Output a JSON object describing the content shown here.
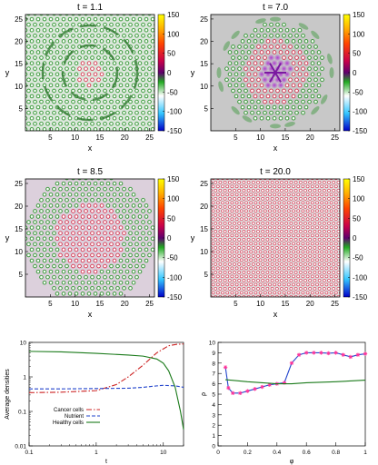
{
  "colorbar": {
    "ticks": [
      "150",
      "100",
      "50",
      "0",
      "-50",
      "-100",
      "-150"
    ],
    "values": [
      150,
      100,
      50,
      0,
      -50,
      -100,
      -150
    ],
    "stops": [
      "#0000c8",
      "#33c6ff",
      "#ffffff",
      "#22aa22",
      "#5e006e",
      "#c8004a",
      "#ff4400",
      "#ffb000",
      "#ffff00"
    ]
  },
  "chart_data": [
    {
      "type": "heatmap",
      "title": "t = 1.1",
      "xlabel": "x",
      "ylabel": "y",
      "xlim": [
        0,
        26
      ],
      "ylim": [
        0,
        26
      ],
      "xticks": [
        "5",
        "10",
        "15",
        "20",
        "25"
      ],
      "yticks": [
        "5",
        "10",
        "15",
        "20",
        "25"
      ],
      "zlim": [
        -150,
        150
      ]
    },
    {
      "type": "heatmap",
      "title": "t = 7.0",
      "xlabel": "x",
      "ylabel": "y",
      "xlim": [
        0,
        26
      ],
      "ylim": [
        0,
        26
      ],
      "xticks": [
        "5",
        "10",
        "15",
        "20",
        "25"
      ],
      "yticks": [
        "5",
        "10",
        "15",
        "20",
        "25"
      ],
      "zlim": [
        -150,
        150
      ]
    },
    {
      "type": "heatmap",
      "title": "t = 8.5",
      "xlabel": "x",
      "ylabel": "y",
      "xlim": [
        0,
        26
      ],
      "ylim": [
        0,
        26
      ],
      "xticks": [
        "5",
        "10",
        "15",
        "20",
        "25"
      ],
      "yticks": [
        "5",
        "10",
        "15",
        "20",
        "25"
      ],
      "zlim": [
        -150,
        150
      ]
    },
    {
      "type": "heatmap",
      "title": "t = 20.0",
      "xlabel": "x",
      "ylabel": "y",
      "xlim": [
        0,
        26
      ],
      "ylim": [
        0,
        26
      ],
      "xticks": [
        "5",
        "10",
        "15",
        "20",
        "25"
      ],
      "yticks": [
        "5",
        "10",
        "15",
        "20",
        "25"
      ],
      "zlim": [
        -150,
        150
      ]
    },
    {
      "type": "line",
      "xlabel": "t",
      "ylabel": "Average densities",
      "xscale": "log",
      "yscale": "log",
      "xlim": [
        0.1,
        20
      ],
      "ylim": [
        0.01,
        10
      ],
      "xticks": [
        "0.1",
        "1",
        "10"
      ],
      "yticks": [
        "0.01",
        "0.1",
        "1",
        "10"
      ],
      "legend": "bottom-left",
      "series": [
        {
          "name": "Cancer cells",
          "color": "#cc2222",
          "dash": "dashdot",
          "x": [
            0.1,
            0.3,
            1,
            2,
            3,
            5,
            8,
            12,
            16,
            20
          ],
          "y": [
            0.35,
            0.36,
            0.4,
            0.6,
            1.0,
            2.2,
            5.0,
            8.0,
            8.8,
            9.0
          ]
        },
        {
          "name": "Nutrient",
          "color": "#2244cc",
          "dash": "dash",
          "x": [
            0.1,
            0.3,
            1,
            3,
            5,
            8,
            10,
            15,
            20
          ],
          "y": [
            0.45,
            0.45,
            0.46,
            0.47,
            0.5,
            0.55,
            0.57,
            0.55,
            0.5
          ]
        },
        {
          "name": "Healthy cells",
          "color": "#1a7a1a",
          "dash": "solid",
          "x": [
            0.1,
            0.3,
            1,
            3,
            5,
            8,
            10,
            12,
            15,
            18,
            20
          ],
          "y": [
            5.5,
            5.3,
            4.8,
            4.3,
            4.0,
            3.3,
            2.5,
            1.5,
            0.5,
            0.1,
            0.03
          ]
        }
      ]
    },
    {
      "type": "line",
      "xlabel": "φ",
      "ylabel": "ρ",
      "xlim": [
        0,
        1
      ],
      "ylim": [
        0,
        10
      ],
      "xticks": [
        "0",
        "0.2",
        "0.4",
        "0.6",
        "0.8",
        "1"
      ],
      "yticks": [
        "0",
        "1",
        "2",
        "3",
        "4",
        "5",
        "6",
        "7",
        "8",
        "9",
        "10"
      ],
      "series": [
        {
          "color": "#2244cc",
          "markers": "star",
          "markerColor": "#ff3399",
          "x": [
            0.05,
            0.07,
            0.1,
            0.15,
            0.2,
            0.25,
            0.3,
            0.35,
            0.4,
            0.45,
            0.5,
            0.55,
            0.6,
            0.65,
            0.7,
            0.75,
            0.8,
            0.85,
            0.9,
            0.95,
            1.0
          ],
          "y": [
            7.6,
            5.6,
            5.1,
            5.1,
            5.3,
            5.5,
            5.7,
            5.9,
            6.0,
            6.1,
            8.0,
            8.8,
            9.0,
            9.0,
            9.0,
            8.95,
            9.0,
            8.8,
            8.6,
            8.8,
            8.9
          ]
        },
        {
          "color": "#1a7a1a",
          "x": [
            0.05,
            0.2,
            0.4,
            0.5,
            0.6,
            0.8,
            1.0
          ],
          "y": [
            6.4,
            6.2,
            6.0,
            6.0,
            6.1,
            6.2,
            6.35
          ]
        }
      ]
    }
  ]
}
